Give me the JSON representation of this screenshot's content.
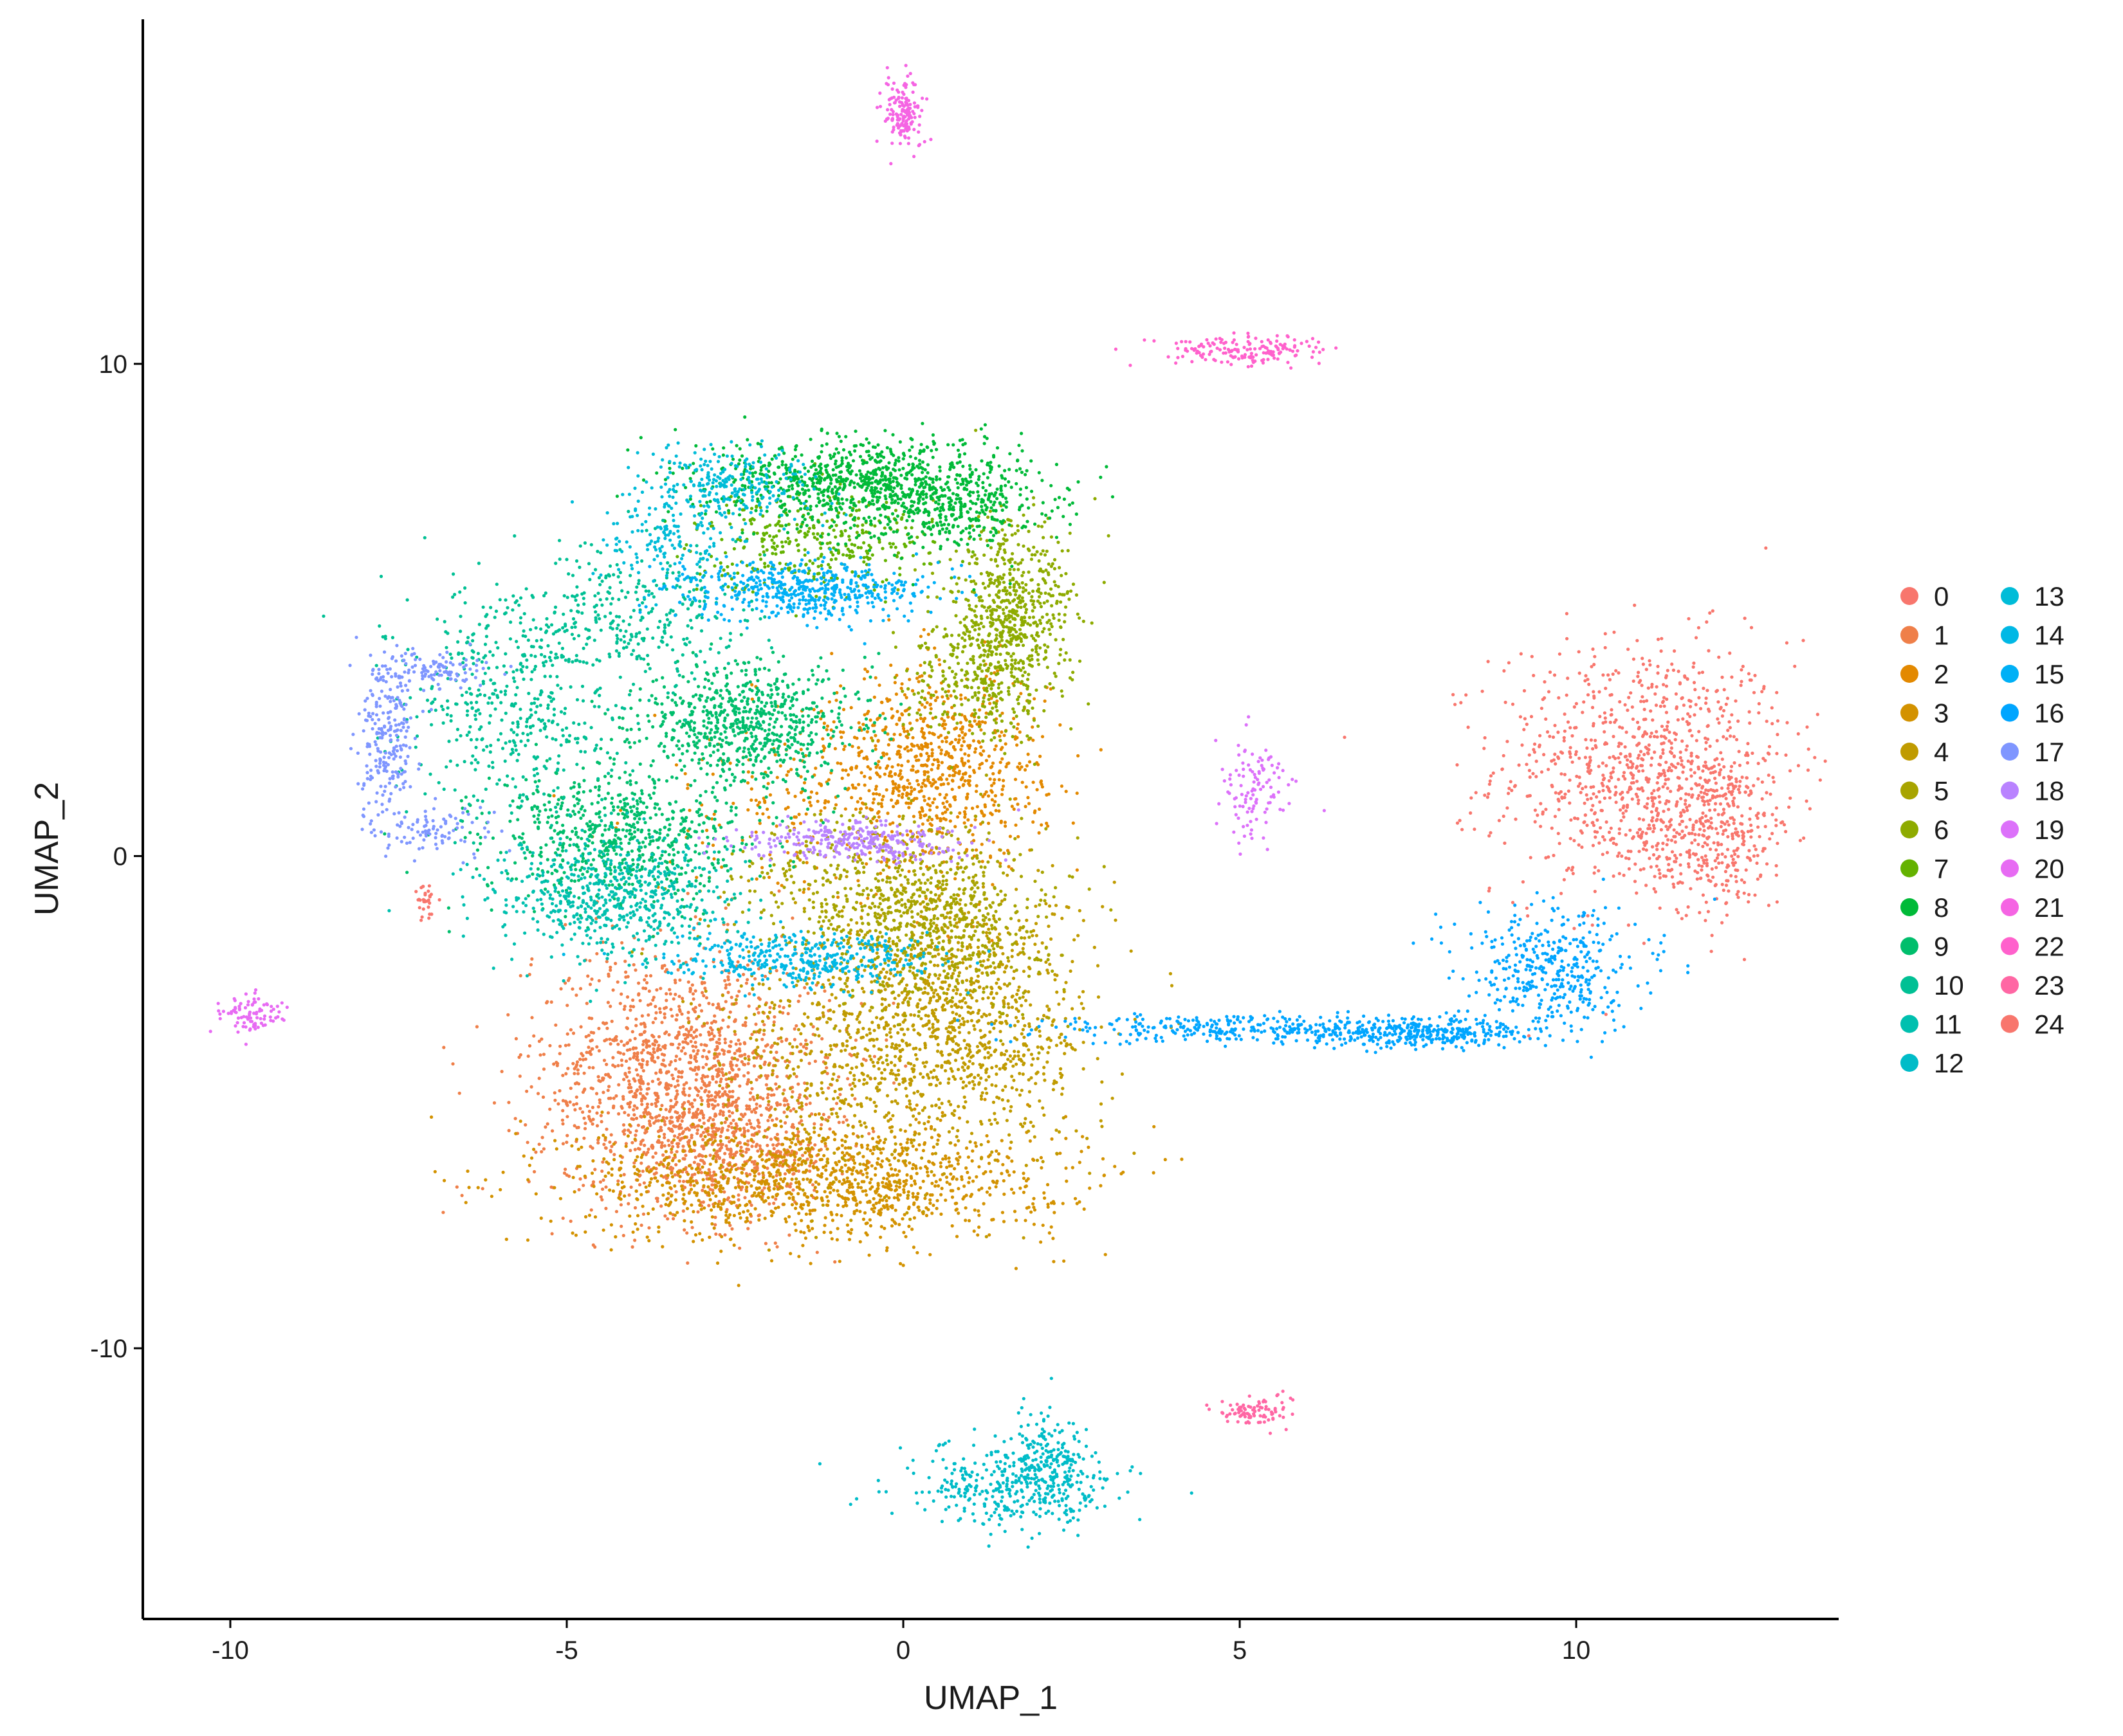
{
  "chart_data": {
    "type": "scatter",
    "title": "",
    "xlabel": "UMAP_1",
    "ylabel": "UMAP_2",
    "xlim": [
      -11.3,
      13.9
    ],
    "ylim": [
      -15.5,
      17.0
    ],
    "xticks": [
      -10,
      -5,
      0,
      5,
      10
    ],
    "yticks": [
      -10,
      0,
      10
    ],
    "xtick_labels": [
      "-10",
      "-5",
      "0",
      "5",
      "10"
    ],
    "ytick_labels": [
      "-10",
      "0",
      "10"
    ],
    "grid": false,
    "legend_position": "right",
    "series": [
      {
        "name": "0",
        "color": "#F8766D",
        "clusters": [
          {
            "cx": 11.0,
            "cy": 1.8,
            "sx": 1.1,
            "sy": 1.3,
            "n": 900
          },
          {
            "cx": 12.0,
            "cy": 0.5,
            "sx": 0.6,
            "sy": 0.8,
            "n": 350
          }
        ]
      },
      {
        "name": "1",
        "color": "#EF7F49",
        "clusters": [
          {
            "cx": -3.3,
            "cy": -4.5,
            "sx": 1.1,
            "sy": 1.3,
            "n": 1400
          },
          {
            "cx": -2.6,
            "cy": -6.0,
            "sx": 0.8,
            "sy": 0.6,
            "n": 400
          }
        ]
      },
      {
        "name": "2",
        "color": "#E38900",
        "clusters": [
          {
            "cx": 0.5,
            "cy": 1.8,
            "sx": 0.8,
            "sy": 1.0,
            "n": 800
          },
          {
            "cx": -1.5,
            "cy": 1.0,
            "sx": 1.2,
            "sy": 0.9,
            "n": 200
          }
        ]
      },
      {
        "name": "3",
        "color": "#D39200",
        "clusters": [
          {
            "cx": -1.2,
            "cy": -6.6,
            "sx": 1.8,
            "sy": 0.6,
            "n": 1200
          }
        ]
      },
      {
        "name": "4",
        "color": "#C09B00",
        "clusters": [
          {
            "cx": 0.8,
            "cy": -3.3,
            "sx": 1.0,
            "sy": 1.3,
            "n": 1100
          },
          {
            "cx": -1.2,
            "cy": -4.3,
            "sx": 0.9,
            "sy": 1.2,
            "n": 400
          }
        ]
      },
      {
        "name": "5",
        "color": "#A8A400",
        "clusters": [
          {
            "cx": 0.5,
            "cy": -1.2,
            "sx": 0.8,
            "sy": 0.9,
            "n": 700
          },
          {
            "cx": -0.8,
            "cy": -0.7,
            "sx": 1.0,
            "sy": 0.8,
            "n": 250
          }
        ]
      },
      {
        "name": "6",
        "color": "#8EAB00",
        "clusters": [
          {
            "cx": 1.6,
            "cy": 4.8,
            "sx": 0.45,
            "sy": 1.0,
            "n": 650
          },
          {
            "cx": 1.0,
            "cy": 3.5,
            "sx": 0.5,
            "sy": 0.6,
            "n": 200
          }
        ]
      },
      {
        "name": "7",
        "color": "#64B200",
        "clusters": [
          {
            "cx": -1.3,
            "cy": 6.4,
            "sx": 0.9,
            "sy": 0.5,
            "n": 350
          }
        ]
      },
      {
        "name": "8",
        "color": "#00BA38",
        "clusters": [
          {
            "cx": -0.5,
            "cy": 7.6,
            "sx": 1.2,
            "sy": 0.45,
            "n": 900
          },
          {
            "cx": 0.8,
            "cy": 7.0,
            "sx": 0.6,
            "sy": 0.4,
            "n": 250
          }
        ]
      },
      {
        "name": "9",
        "color": "#00BE6C",
        "clusters": [
          {
            "cx": -2.3,
            "cy": 2.7,
            "sx": 0.8,
            "sy": 0.6,
            "n": 700
          },
          {
            "cx": -4.2,
            "cy": 0.4,
            "sx": 1.0,
            "sy": 0.7,
            "n": 700
          }
        ]
      },
      {
        "name": "10",
        "color": "#00C094",
        "clusters": [
          {
            "cx": -5.7,
            "cy": 3.2,
            "sx": 0.8,
            "sy": 1.2,
            "n": 500
          },
          {
            "cx": -4.0,
            "cy": 4.8,
            "sx": 0.9,
            "sy": 0.8,
            "n": 300
          }
        ]
      },
      {
        "name": "11",
        "color": "#00C0AF",
        "clusters": [
          {
            "cx": -4.3,
            "cy": -0.9,
            "sx": 0.9,
            "sy": 0.6,
            "n": 600
          }
        ]
      },
      {
        "name": "12",
        "color": "#00BCC8",
        "clusters": [
          {
            "cx": 1.6,
            "cy": -12.8,
            "sx": 0.8,
            "sy": 0.45,
            "n": 350
          },
          {
            "cx": 2.2,
            "cy": -12.3,
            "sx": 0.3,
            "sy": 0.5,
            "n": 180
          }
        ]
      },
      {
        "name": "13",
        "color": "#00BCD8",
        "clusters": [
          {
            "cx": -2.5,
            "cy": 7.5,
            "sx": 0.6,
            "sy": 0.4,
            "n": 250
          },
          {
            "cx": -3.5,
            "cy": 6.5,
            "sx": 0.5,
            "sy": 0.5,
            "n": 150
          }
        ]
      },
      {
        "name": "14",
        "color": "#00B8E5",
        "clusters": [
          {
            "cx": -1.5,
            "cy": -2.1,
            "sx": 1.0,
            "sy": 0.25,
            "n": 400
          }
        ]
      },
      {
        "name": "15",
        "color": "#00B0F6",
        "clusters": [
          {
            "cx": -1.5,
            "cy": 5.4,
            "sx": 0.9,
            "sy": 0.3,
            "n": 500
          }
        ]
      },
      {
        "name": "16",
        "color": "#00A5FF",
        "clusters": [
          {
            "cx": 5.3,
            "cy": -3.5,
            "sx": 1.8,
            "sy": 0.15,
            "n": 350
          },
          {
            "cx": 7.8,
            "cy": -3.6,
            "sx": 0.8,
            "sy": 0.15,
            "n": 300
          },
          {
            "cx": 9.7,
            "cy": -2.3,
            "sx": 0.7,
            "sy": 0.6,
            "n": 400
          }
        ]
      },
      {
        "name": "17",
        "color": "#7F96FF",
        "clusters": [
          {
            "cx": -7.7,
            "cy": 2.3,
            "sx": 0.2,
            "sy": 0.8,
            "n": 220
          },
          {
            "cx": -7.1,
            "cy": 3.8,
            "sx": 0.5,
            "sy": 0.2,
            "n": 120
          },
          {
            "cx": -6.9,
            "cy": 0.5,
            "sx": 0.5,
            "sy": 0.25,
            "n": 90
          }
        ]
      },
      {
        "name": "18",
        "color": "#B983FF",
        "clusters": [
          {
            "cx": -0.8,
            "cy": 0.3,
            "sx": 0.8,
            "sy": 0.2,
            "n": 300
          }
        ]
      },
      {
        "name": "19",
        "color": "#DC71FA",
        "clusters": [
          {
            "cx": 5.2,
            "cy": 1.3,
            "sx": 0.25,
            "sy": 0.6,
            "n": 110
          }
        ]
      },
      {
        "name": "20",
        "color": "#E76BF3",
        "clusters": [
          {
            "cx": -9.7,
            "cy": -3.2,
            "sx": 0.25,
            "sy": 0.2,
            "n": 90
          }
        ]
      },
      {
        "name": "21",
        "color": "#F564E3",
        "clusters": [
          {
            "cx": 0.0,
            "cy": 15.1,
            "sx": 0.15,
            "sy": 0.35,
            "n": 160
          }
        ]
      },
      {
        "name": "22",
        "color": "#FF61CC",
        "clusters": [
          {
            "cx": 5.0,
            "cy": 10.3,
            "sx": 0.6,
            "sy": 0.15,
            "n": 170
          }
        ]
      },
      {
        "name": "23",
        "color": "#FF67A4",
        "clusters": [
          {
            "cx": 5.2,
            "cy": -11.3,
            "sx": 0.25,
            "sy": 0.15,
            "n": 90
          }
        ]
      },
      {
        "name": "24",
        "color": "#F8766D",
        "clusters": [
          {
            "cx": -7.1,
            "cy": -0.9,
            "sx": 0.08,
            "sy": 0.2,
            "n": 30
          }
        ]
      }
    ]
  }
}
